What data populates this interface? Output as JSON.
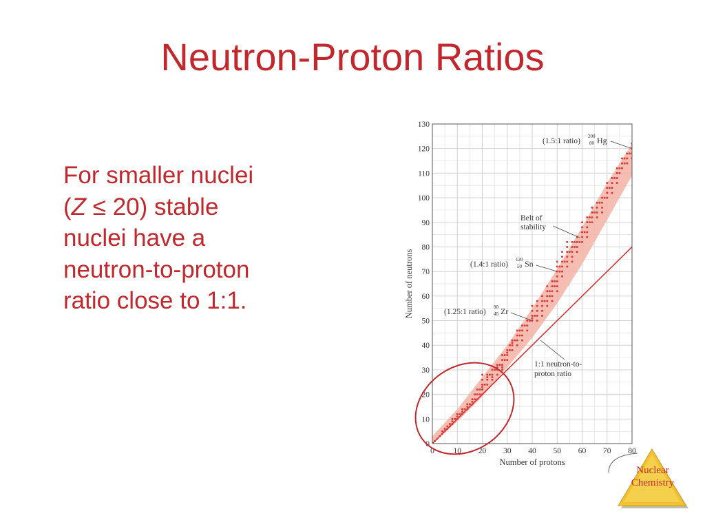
{
  "slide": {
    "title": "Neutron-Proton Ratios",
    "body_lines": [
      {
        "before": "For smaller nuclei",
        "italic": "",
        "after": ""
      },
      {
        "before": "(",
        "italic": "Z",
        "after": " ≤ 20) stable"
      },
      {
        "before": "nuclei have a",
        "italic": "",
        "after": ""
      },
      {
        "before": "neutron-to-proton",
        "italic": "",
        "after": ""
      },
      {
        "before": "ratio close to 1:1.",
        "italic": "",
        "after": ""
      }
    ],
    "badge": {
      "line1": "Nuclear",
      "line2": "Chemistry"
    },
    "colors": {
      "title": "#c0282d",
      "body": "#c0282d",
      "band": "#f5b3a6",
      "points": "#d93a3a",
      "line": "#d02a2a",
      "badge": "#f2c230"
    }
  },
  "chart_data": {
    "type": "scatter",
    "xlabel": "Number of protons",
    "ylabel": "Number of neutrons",
    "xlim": [
      0,
      80
    ],
    "ylim": [
      0,
      130
    ],
    "xticks": [
      0,
      10,
      20,
      30,
      40,
      50,
      60,
      70,
      80
    ],
    "yticks": [
      0,
      10,
      20,
      30,
      40,
      50,
      60,
      70,
      80,
      90,
      100,
      110,
      120,
      130
    ],
    "grid": true,
    "reference_line": {
      "label_line1": "1:1 neutron-to-",
      "label_line2": "proton ratio",
      "points": [
        [
          0,
          0
        ],
        [
          80,
          80
        ]
      ]
    },
    "band": {
      "label_line1": "Belt of",
      "label_line2": "stability",
      "lower": [
        [
          0,
          0
        ],
        [
          10,
          9
        ],
        [
          20,
          19
        ],
        [
          30,
          31
        ],
        [
          40,
          43
        ],
        [
          50,
          57
        ],
        [
          60,
          73
        ],
        [
          70,
          91
        ],
        [
          80,
          109
        ],
        [
          83,
          116
        ]
      ],
      "upper": [
        [
          0,
          3
        ],
        [
          10,
          14
        ],
        [
          20,
          27
        ],
        [
          30,
          40
        ],
        [
          40,
          55
        ],
        [
          50,
          71
        ],
        [
          60,
          88
        ],
        [
          70,
          106
        ],
        [
          80,
          122
        ],
        [
          83,
          126
        ]
      ]
    },
    "annotations": [
      {
        "ratio": "(1.5:1 ratio)",
        "mass": "200",
        "z": "80",
        "symbol": "Hg",
        "x": 80,
        "y": 120
      },
      {
        "ratio": "(1.4:1 ratio)",
        "mass": "120",
        "z": "50",
        "symbol": "Sn",
        "x": 50,
        "y": 70
      },
      {
        "ratio": "(1.25:1 ratio)",
        "mass": "90",
        "z": "40",
        "symbol": "Zr",
        "x": 40,
        "y": 50
      }
    ],
    "highlight": {
      "shape": "ellipse",
      "center": [
        18,
        18
      ],
      "description": ""
    },
    "points": [
      [
        1,
        1
      ],
      [
        2,
        2
      ],
      [
        3,
        3
      ],
      [
        4,
        4
      ],
      [
        4,
        5
      ],
      [
        5,
        5
      ],
      [
        5,
        6
      ],
      [
        6,
        6
      ],
      [
        6,
        7
      ],
      [
        7,
        7
      ],
      [
        7,
        8
      ],
      [
        8,
        8
      ],
      [
        8,
        9
      ],
      [
        8,
        10
      ],
      [
        9,
        10
      ],
      [
        10,
        10
      ],
      [
        10,
        11
      ],
      [
        10,
        12
      ],
      [
        11,
        12
      ],
      [
        12,
        12
      ],
      [
        12,
        13
      ],
      [
        12,
        14
      ],
      [
        13,
        14
      ],
      [
        14,
        14
      ],
      [
        14,
        15
      ],
      [
        14,
        16
      ],
      [
        15,
        16
      ],
      [
        16,
        16
      ],
      [
        16,
        17
      ],
      [
        16,
        18
      ],
      [
        17,
        18
      ],
      [
        17,
        20
      ],
      [
        18,
        18
      ],
      [
        18,
        20
      ],
      [
        18,
        22
      ],
      [
        19,
        20
      ],
      [
        19,
        22
      ],
      [
        20,
        20
      ],
      [
        20,
        22
      ],
      [
        20,
        23
      ],
      [
        20,
        24
      ],
      [
        20,
        26
      ],
      [
        20,
        28
      ],
      [
        21,
        24
      ],
      [
        22,
        24
      ],
      [
        22,
        26
      ],
      [
        22,
        27
      ],
      [
        22,
        28
      ],
      [
        23,
        28
      ],
      [
        24,
        26
      ],
      [
        24,
        27
      ],
      [
        24,
        28
      ],
      [
        24,
        30
      ],
      [
        25,
        30
      ],
      [
        26,
        28
      ],
      [
        26,
        30
      ],
      [
        26,
        31
      ],
      [
        26,
        32
      ],
      [
        27,
        32
      ],
      [
        28,
        30
      ],
      [
        28,
        31
      ],
      [
        28,
        32
      ],
      [
        28,
        34
      ],
      [
        28,
        36
      ],
      [
        29,
        34
      ],
      [
        29,
        36
      ],
      [
        30,
        34
      ],
      [
        30,
        36
      ],
      [
        30,
        37
      ],
      [
        30,
        38
      ],
      [
        31,
        38
      ],
      [
        31,
        40
      ],
      [
        32,
        38
      ],
      [
        32,
        40
      ],
      [
        32,
        41
      ],
      [
        32,
        42
      ],
      [
        33,
        42
      ],
      [
        34,
        40
      ],
      [
        34,
        42
      ],
      [
        34,
        44
      ],
      [
        34,
        46
      ],
      [
        35,
        44
      ],
      [
        35,
        46
      ],
      [
        36,
        42
      ],
      [
        36,
        44
      ],
      [
        36,
        46
      ],
      [
        36,
        48
      ],
      [
        37,
        48
      ],
      [
        38,
        46
      ],
      [
        38,
        48
      ],
      [
        38,
        50
      ],
      [
        39,
        50
      ],
      [
        40,
        50
      ],
      [
        40,
        51
      ],
      [
        40,
        52
      ],
      [
        40,
        54
      ],
      [
        40,
        56
      ],
      [
        41,
        52
      ],
      [
        42,
        50
      ],
      [
        42,
        52
      ],
      [
        42,
        54
      ],
      [
        42,
        56
      ],
      [
        42,
        58
      ],
      [
        44,
        52
      ],
      [
        44,
        54
      ],
      [
        44,
        56
      ],
      [
        44,
        58
      ],
      [
        44,
        60
      ],
      [
        45,
        58
      ],
      [
        46,
        56
      ],
      [
        46,
        58
      ],
      [
        46,
        60
      ],
      [
        46,
        62
      ],
      [
        46,
        64
      ],
      [
        47,
        60
      ],
      [
        47,
        62
      ],
      [
        48,
        58
      ],
      [
        48,
        60
      ],
      [
        48,
        62
      ],
      [
        48,
        64
      ],
      [
        48,
        66
      ],
      [
        49,
        64
      ],
      [
        49,
        66
      ],
      [
        50,
        62
      ],
      [
        50,
        64
      ],
      [
        50,
        66
      ],
      [
        50,
        68
      ],
      [
        50,
        70
      ],
      [
        50,
        72
      ],
      [
        50,
        74
      ],
      [
        51,
        70
      ],
      [
        51,
        72
      ],
      [
        52,
        68
      ],
      [
        52,
        70
      ],
      [
        52,
        72
      ],
      [
        52,
        74
      ],
      [
        52,
        76
      ],
      [
        52,
        78
      ],
      [
        53,
        74
      ],
      [
        54,
        72
      ],
      [
        54,
        74
      ],
      [
        54,
        76
      ],
      [
        54,
        78
      ],
      [
        54,
        80
      ],
      [
        54,
        82
      ],
      [
        55,
        78
      ],
      [
        56,
        74
      ],
      [
        56,
        76
      ],
      [
        56,
        78
      ],
      [
        56,
        80
      ],
      [
        56,
        82
      ],
      [
        57,
        80
      ],
      [
        57,
        82
      ],
      [
        58,
        78
      ],
      [
        58,
        80
      ],
      [
        58,
        82
      ],
      [
        58,
        84
      ],
      [
        59,
        82
      ],
      [
        60,
        82
      ],
      [
        60,
        84
      ],
      [
        60,
        86
      ],
      [
        60,
        88
      ],
      [
        60,
        90
      ],
      [
        61,
        86
      ],
      [
        62,
        84
      ],
      [
        62,
        86
      ],
      [
        62,
        88
      ],
      [
        62,
        90
      ],
      [
        62,
        92
      ],
      [
        63,
        90
      ],
      [
        63,
        92
      ],
      [
        64,
        90
      ],
      [
        64,
        92
      ],
      [
        64,
        94
      ],
      [
        64,
        96
      ],
      [
        65,
        94
      ],
      [
        66,
        92
      ],
      [
        66,
        94
      ],
      [
        66,
        96
      ],
      [
        66,
        98
      ],
      [
        67,
        98
      ],
      [
        68,
        94
      ],
      [
        68,
        96
      ],
      [
        68,
        98
      ],
      [
        68,
        100
      ],
      [
        69,
        100
      ],
      [
        70,
        100
      ],
      [
        70,
        102
      ],
      [
        70,
        104
      ],
      [
        70,
        106
      ],
      [
        71,
        104
      ],
      [
        72,
        102
      ],
      [
        72,
        104
      ],
      [
        72,
        106
      ],
      [
        72,
        108
      ],
      [
        73,
        108
      ],
      [
        74,
        106
      ],
      [
        74,
        108
      ],
      [
        74,
        110
      ],
      [
        74,
        112
      ],
      [
        75,
        110
      ],
      [
        75,
        112
      ],
      [
        76,
        112
      ],
      [
        76,
        114
      ],
      [
        76,
        116
      ],
      [
        77,
        114
      ],
      [
        77,
        116
      ],
      [
        78,
        114
      ],
      [
        78,
        116
      ],
      [
        78,
        118
      ],
      [
        79,
        118
      ],
      [
        80,
        116
      ],
      [
        80,
        118
      ],
      [
        80,
        120
      ],
      [
        80,
        122
      ],
      [
        81,
        122
      ],
      [
        81,
        124
      ],
      [
        82,
        122
      ],
      [
        82,
        124
      ],
      [
        82,
        126
      ]
    ]
  }
}
